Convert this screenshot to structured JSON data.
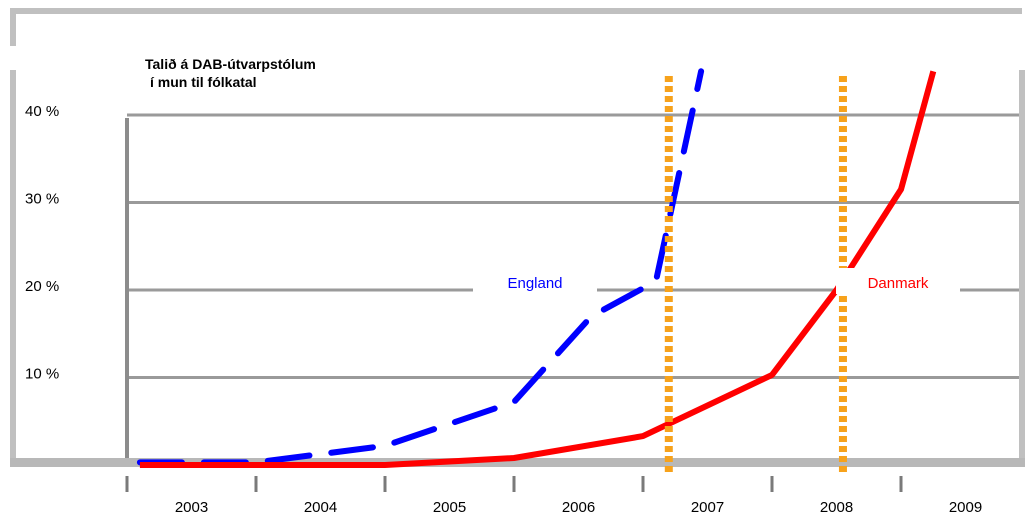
{
  "chart_data": {
    "type": "line",
    "title_lines": [
      "Talið á DAB-útvarpstólum",
      "í mun til fólkatal"
    ],
    "y_tick_labels": [
      "10 %",
      "20 %",
      "30 %",
      "40 %"
    ],
    "y_ticks": [
      10,
      20,
      30,
      40
    ],
    "x_tick_labels": [
      "2003",
      "2004",
      "2005",
      "2006",
      "2007",
      "2008",
      "2009"
    ],
    "ylim": [
      0,
      45
    ],
    "xlim": [
      2003,
      2010
    ],
    "grid": true,
    "series": [
      {
        "name": "England",
        "color": "#0000ff",
        "style": "dashed",
        "points": [
          [
            2003.1,
            0.3
          ],
          [
            2004.0,
            0.3
          ],
          [
            2005.0,
            2.2
          ],
          [
            2006.0,
            7.2
          ],
          [
            2006.6,
            17.0
          ],
          [
            2007.1,
            21.0
          ],
          [
            2007.45,
            45.0
          ]
        ]
      },
      {
        "name": "Danmark",
        "color": "#ff0000",
        "style": "solid",
        "points": [
          [
            2003.1,
            0.0
          ],
          [
            2005.0,
            0.0
          ],
          [
            2006.0,
            0.8
          ],
          [
            2007.0,
            3.3
          ],
          [
            2008.0,
            10.3
          ],
          [
            2008.5,
            20.0
          ],
          [
            2009.0,
            31.5
          ],
          [
            2009.25,
            45.0
          ]
        ]
      }
    ],
    "markers": [
      {
        "x": 2007.2,
        "color": "#f7a21b",
        "style": "dotted"
      },
      {
        "x": 2008.55,
        "color": "#f7a21b",
        "style": "dotted"
      }
    ]
  }
}
